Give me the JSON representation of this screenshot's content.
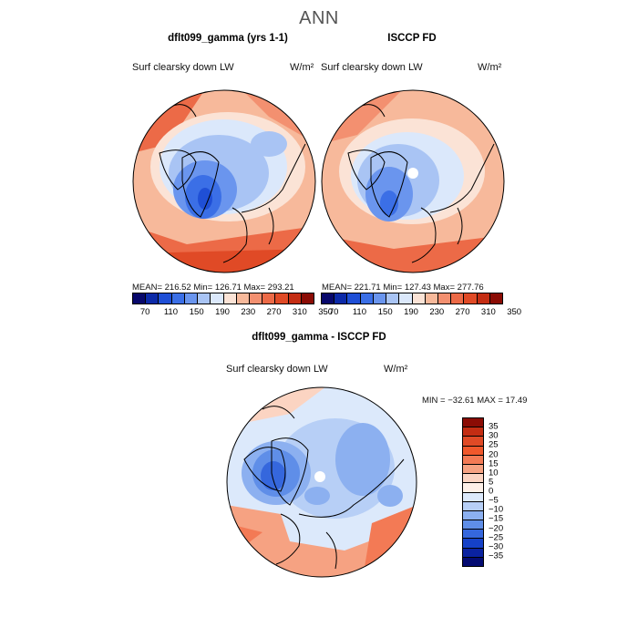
{
  "main_title": "ANN",
  "panels": [
    {
      "title": "dflt099_gamma (yrs 1-1)",
      "variable": "Surf clearsky down LW",
      "units": "W/m²",
      "stats": "MEAN= 216.52   Min= 126.71   Max= 293.21"
    },
    {
      "title": "ISCCP FD",
      "variable": "Surf clearsky down LW",
      "units": "W/m²",
      "stats": "MEAN= 221.71   Min= 127.43   Max= 277.76"
    },
    {
      "title": "dflt099_gamma - ISCCP FD",
      "variable": "Surf clearsky down LW",
      "units": "W/m²",
      "stats": "MIN = −32.61  MAX =  17.49"
    }
  ],
  "abs_colorbar": {
    "tick_labels": [
      "70",
      "110",
      "150",
      "190",
      "230",
      "270",
      "310",
      "350"
    ],
    "colors": [
      "#08086b",
      "#0c2aa8",
      "#1f4fd6",
      "#3b6fe6",
      "#6a95ee",
      "#a9c4f4",
      "#dbe8fb",
      "#fbe3d6",
      "#f7b99b",
      "#f39070",
      "#ec6a47",
      "#e04a26",
      "#c42d13",
      "#8b0c05"
    ]
  },
  "diff_colorbar": {
    "tick_labels": [
      "35",
      "30",
      "25",
      "20",
      "15",
      "10",
      "5",
      "0",
      "−5",
      "−10",
      "−15",
      "−20",
      "−25",
      "−30",
      "−35"
    ],
    "colors": [
      "#8b0c05",
      "#c42d13",
      "#e04a26",
      "#f0582c",
      "#f37a55",
      "#f6a282",
      "#fbd4c2",
      "#fdf0e8",
      "#dce9fb",
      "#b7cff6",
      "#8cb0f0",
      "#5f8ee8",
      "#3567dd",
      "#1541c8",
      "#0a22a0",
      "#040b72"
    ]
  }
}
